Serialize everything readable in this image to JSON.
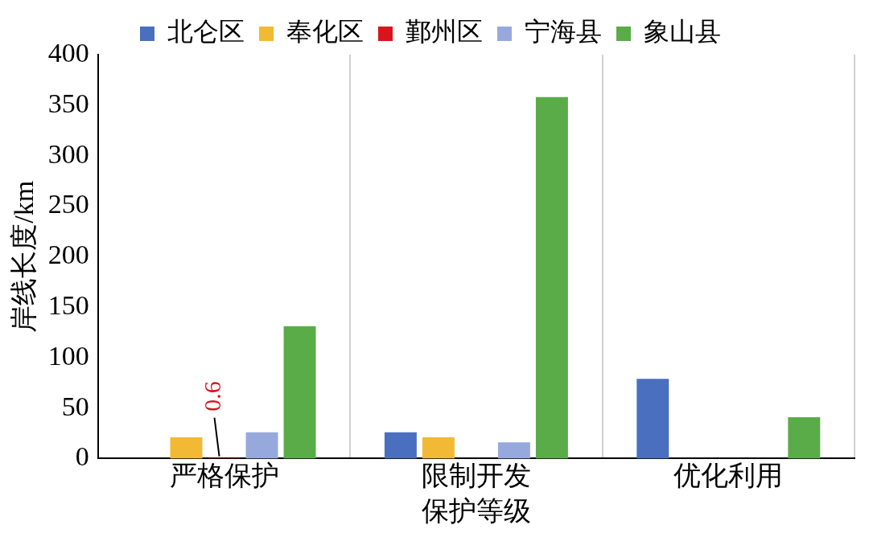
{
  "chart_data": {
    "type": "bar",
    "xlabel": "保护等级",
    "ylabel": "岸线长度/km",
    "categories": [
      "严格保护",
      "限制开发",
      "优化利用"
    ],
    "series": [
      {
        "name": "北仑区",
        "color": "#4a6fbe",
        "values": [
          null,
          26,
          79
        ]
      },
      {
        "name": "奉化区",
        "color": "#f2b935",
        "values": [
          21,
          21,
          null
        ]
      },
      {
        "name": "鄞州区",
        "color": "#d9141b",
        "values": [
          0.6,
          null,
          null
        ],
        "value_labels": [
          "0.6",
          null,
          null
        ]
      },
      {
        "name": "宁海县",
        "color": "#97a9dc",
        "values": [
          26,
          16,
          null
        ]
      },
      {
        "name": "象山县",
        "color": "#5aac48",
        "values": [
          131,
          358,
          41
        ]
      }
    ],
    "ylim": [
      0,
      400
    ],
    "yticks": [
      0,
      50,
      100,
      150,
      200,
      250,
      300,
      350,
      400
    ],
    "grid": "x",
    "legend": "top"
  }
}
